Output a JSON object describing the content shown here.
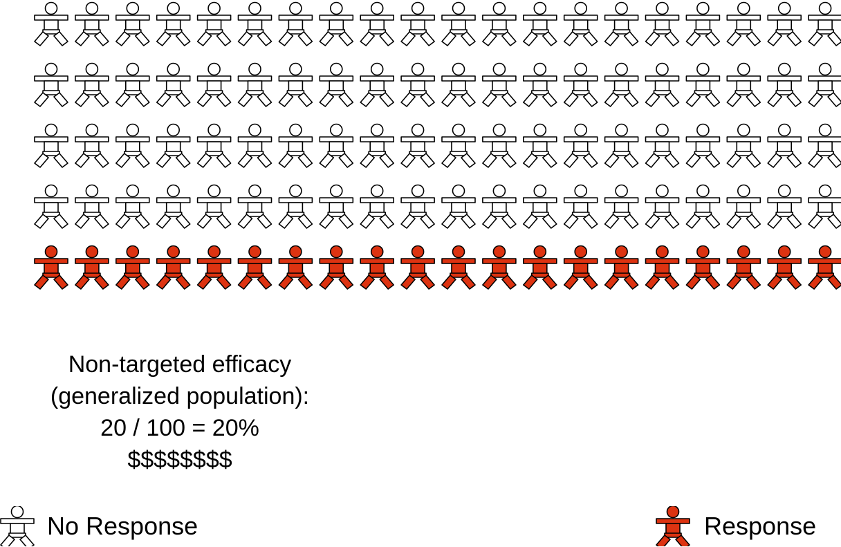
{
  "figure": {
    "rows": [
      {
        "count": 20,
        "status": "no_response"
      },
      {
        "count": 20,
        "status": "no_response"
      },
      {
        "count": 20,
        "status": "no_response"
      },
      {
        "count": 20,
        "status": "no_response"
      },
      {
        "count": 20,
        "status": "response"
      }
    ],
    "icon": "person-icon",
    "colors": {
      "no_response_fill": "#ffffff",
      "response_fill": "#dd3311",
      "stroke": "#000000"
    }
  },
  "caption": {
    "line1": "Non-targeted efficacy",
    "line2": "(generalized population):",
    "line3": "20 / 100 = 20%",
    "line4": "$$$$$$$$"
  },
  "legend": {
    "no_response": "No Response",
    "response": "Response"
  }
}
